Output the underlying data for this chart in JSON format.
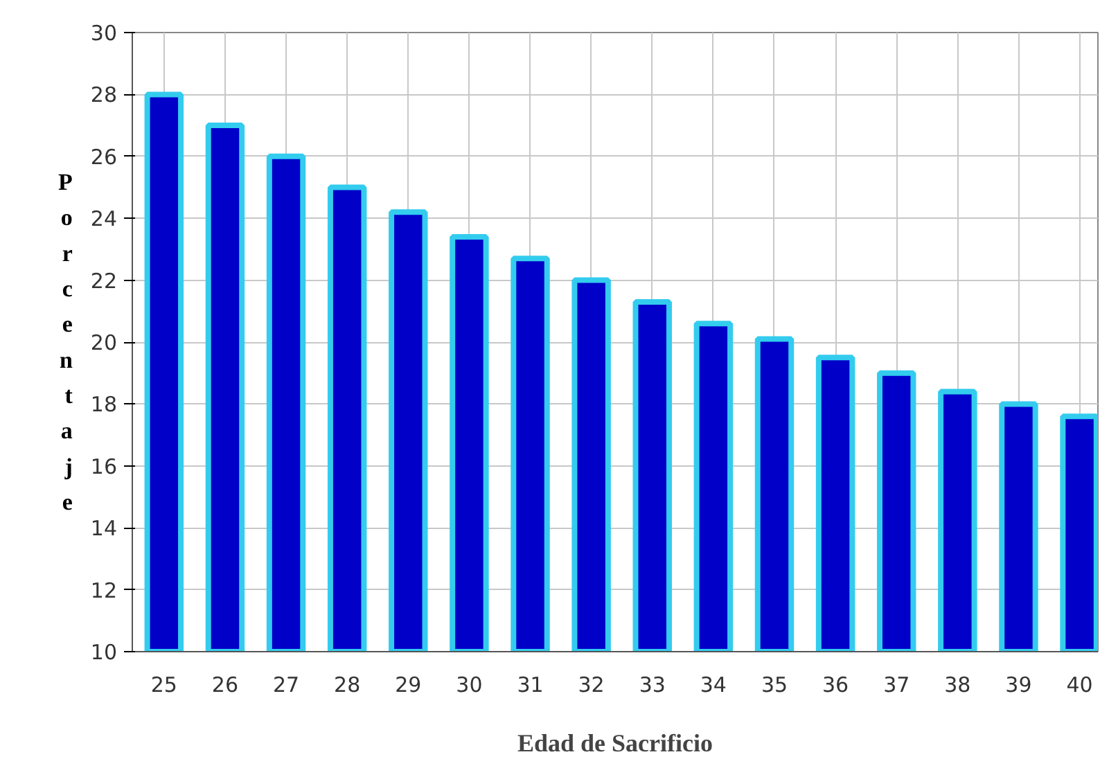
{
  "chart_data": {
    "type": "bar",
    "xlabel": "Edad de Sacrificio",
    "ylabel": "Porcentaje",
    "categories": [
      "25",
      "26",
      "27",
      "28",
      "29",
      "30",
      "31",
      "32",
      "33",
      "34",
      "35",
      "36",
      "37",
      "38",
      "39",
      "40"
    ],
    "values": [
      28.0,
      27.0,
      26.0,
      25.0,
      24.2,
      23.4,
      22.7,
      22.0,
      21.3,
      20.6,
      20.1,
      19.5,
      19.0,
      18.4,
      18.0,
      17.6
    ],
    "color": "#0000c8",
    "ylim": [
      10,
      30
    ],
    "yticks": [
      10,
      12,
      14,
      16,
      18,
      20,
      22,
      24,
      26,
      28,
      30
    ],
    "grid": true
  }
}
